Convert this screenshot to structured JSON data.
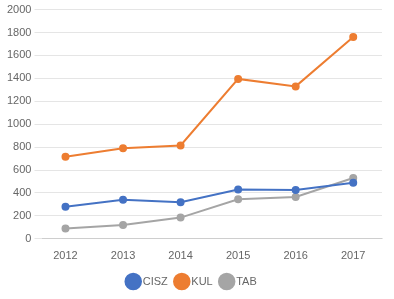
{
  "chart_data": {
    "type": "line",
    "x": [
      2012,
      2013,
      2014,
      2015,
      2016,
      2017
    ],
    "series": [
      {
        "name": "CISZ",
        "color": "#4472C4",
        "values": [
          280,
          340,
          320,
          430,
          425,
          490
        ]
      },
      {
        "name": "KUL",
        "color": "#ED7D31",
        "values": [
          715,
          790,
          815,
          1395,
          1330,
          1760
        ]
      },
      {
        "name": "TAB",
        "color": "#A5A5A5",
        "values": [
          90,
          120,
          185,
          345,
          365,
          530
        ]
      }
    ],
    "xlim": [
      2011.6,
      2017.5
    ],
    "xticks": [
      2012,
      2013,
      2014,
      2015,
      2016,
      2017
    ],
    "ylim": [
      0,
      2000
    ],
    "yticks": [
      0,
      200,
      400,
      600,
      800,
      1000,
      1200,
      1400,
      1600,
      1800,
      2000
    ],
    "grid": true,
    "legend": "bottom",
    "marker": "circle"
  }
}
